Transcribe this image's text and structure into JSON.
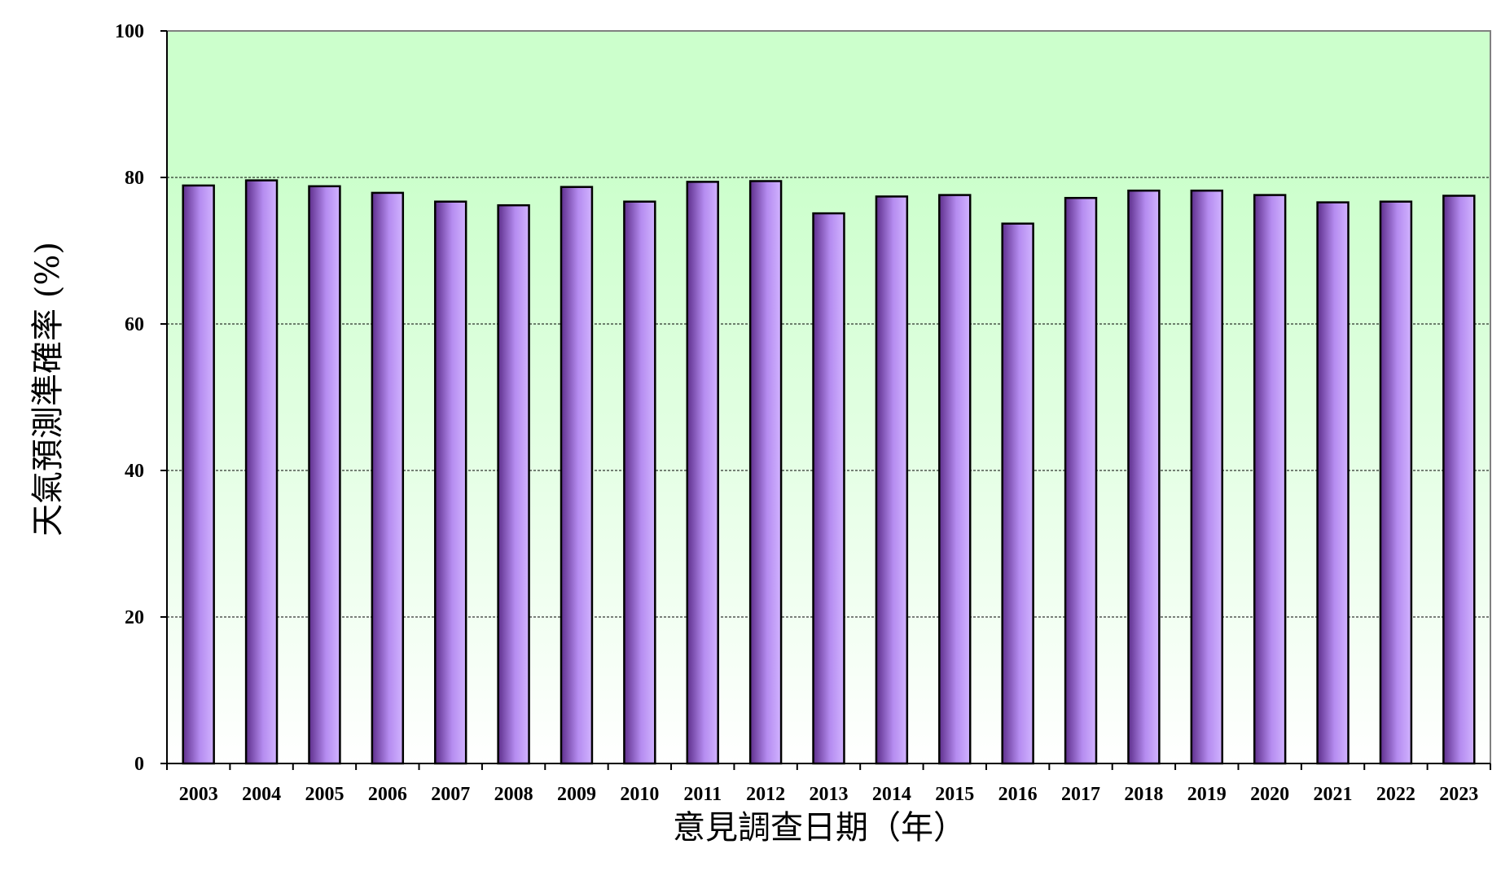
{
  "chart_data": {
    "type": "bar",
    "title": "",
    "xlabel": "意見調查日期（年）",
    "ylabel": "天氣預測準確率 (%)",
    "ylim": [
      0,
      100
    ],
    "yticks": [
      0,
      20,
      40,
      60,
      80,
      100
    ],
    "grid": "horizontal dashed at 20, 40, 60, 80",
    "background_band": {
      "from": 0,
      "to": 100,
      "top_color": "#ccffcc",
      "bottom_color": "#ffffff",
      "solid_above": 80
    },
    "bar_color_dark": "#5e2f8c",
    "bar_color_light": "#c9a6ff",
    "categories": [
      "2003",
      "2004",
      "2005",
      "2006",
      "2007",
      "2008",
      "2009",
      "2010",
      "2011",
      "2012",
      "2013",
      "2014",
      "2015",
      "2016",
      "2017",
      "2018",
      "2019",
      "2020",
      "2021",
      "2022",
      "2023"
    ],
    "values": [
      78.9,
      79.6,
      78.8,
      77.9,
      76.7,
      76.2,
      78.7,
      76.7,
      79.4,
      79.5,
      75.1,
      77.4,
      77.6,
      73.7,
      77.2,
      78.2,
      78.2,
      77.6,
      76.6,
      76.7,
      77.5
    ]
  }
}
